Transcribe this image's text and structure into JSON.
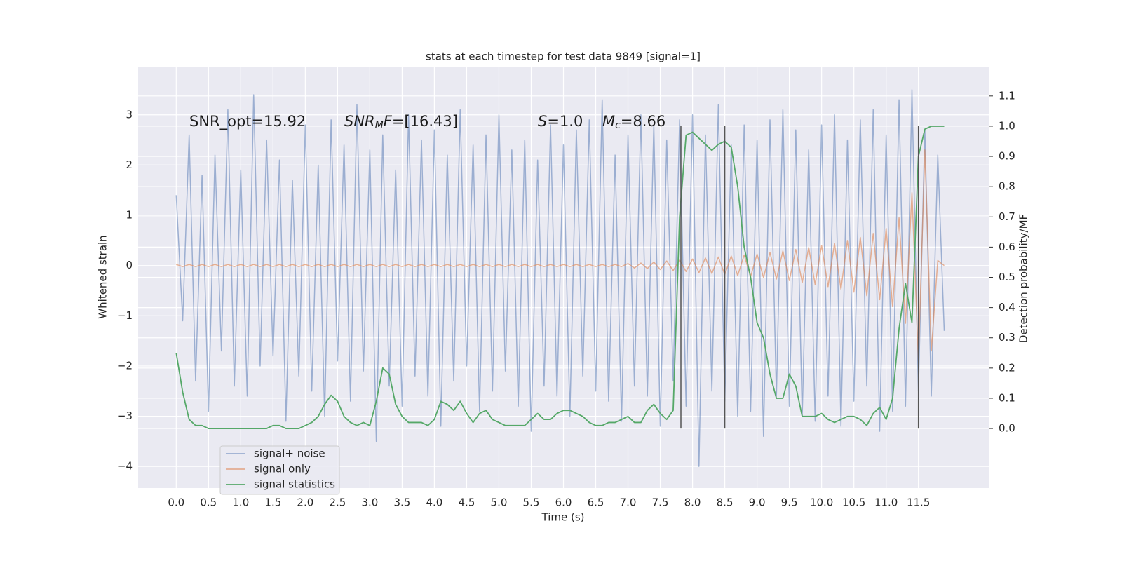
{
  "chart_data": {
    "type": "line",
    "title": "stats at each timestep for test data 9849 [signal=1]",
    "xlabel": "Time (s)",
    "ylabel": "Whitened strain",
    "y2label": "Detection probability/MF",
    "xlim": [
      -0.59,
      12.59
    ],
    "ylim": [
      -4.43,
      3.96
    ],
    "y2lim": [
      -0.197,
      1.197
    ],
    "xticks": [
      {
        "value": 0,
        "label": "0.0"
      },
      0.5,
      {
        "value": 1,
        "label": "1.0"
      },
      1.5,
      {
        "value": 2,
        "label": "2.0"
      },
      2.5,
      {
        "value": 3,
        "label": "3.0"
      },
      3.5,
      {
        "value": 4,
        "label": "4.0"
      },
      4.5,
      {
        "value": 5,
        "label": "5.0"
      },
      5.5,
      {
        "value": 6,
        "label": "6.0"
      },
      6.5,
      {
        "value": 7,
        "label": "7.0"
      },
      7.5,
      {
        "value": 8,
        "label": "8.0"
      },
      8.5,
      {
        "value": 9,
        "label": "9.0"
      },
      9.5,
      {
        "value": 10,
        "label": "10.0"
      },
      10.5,
      {
        "value": 11,
        "label": "11.0"
      },
      11.5
    ],
    "yticks": [
      {
        "value": -4,
        "label": "−4"
      },
      {
        "value": -3,
        "label": "−3"
      },
      {
        "value": -2,
        "label": "−2"
      },
      {
        "value": -1,
        "label": "−1"
      },
      0,
      1,
      2,
      3
    ],
    "y2ticks": [
      {
        "value": 0,
        "label": "0.0"
      },
      0.1,
      0.2,
      0.3,
      0.4,
      0.5,
      0.6,
      0.7,
      0.8,
      0.9,
      {
        "value": 1,
        "label": "1.0"
      },
      1.1
    ],
    "grid": true,
    "legend": "lower left",
    "background": "#eaeaf2",
    "annotations": [
      [
        {
          "text": "SNR_opt=15.92",
          "style": "normal"
        }
      ],
      [
        {
          "text": "SNR",
          "style": "italic"
        },
        {
          "text": "M",
          "style": "subscript"
        },
        {
          "text": "F",
          "style": "italic"
        },
        {
          "text": "=[16.43]",
          "style": "normal"
        }
      ],
      [
        {
          "text": "S",
          "style": "italic"
        },
        {
          "text": "=1.0",
          "style": "normal"
        }
      ],
      [
        {
          "text": "M",
          "style": "italic"
        },
        {
          "text": "c",
          "style": "subscript"
        },
        {
          "text": "=8.66",
          "style": "normal"
        }
      ]
    ],
    "vlines": {
      "x": [
        7.82,
        8.5,
        11.5
      ],
      "y2span": [
        0,
        1
      ],
      "color": "#555555"
    },
    "x": [
      0,
      0.1,
      0.2,
      0.3,
      0.4,
      0.5,
      0.6,
      0.7,
      0.8,
      0.9,
      1,
      1.1,
      1.2,
      1.3,
      1.4,
      1.5,
      1.6,
      1.7,
      1.8,
      1.9,
      2,
      2.1,
      2.2,
      2.3,
      2.4,
      2.5,
      2.6,
      2.7,
      2.8,
      2.9,
      3,
      3.1,
      3.2,
      3.3,
      3.4,
      3.5,
      3.6,
      3.7,
      3.8,
      3.9,
      4,
      4.1,
      4.2,
      4.3,
      4.4,
      4.5,
      4.6,
      4.7,
      4.8,
      4.9,
      5,
      5.1,
      5.2,
      5.3,
      5.4,
      5.5,
      5.6,
      5.7,
      5.8,
      5.9,
      6,
      6.1,
      6.2,
      6.3,
      6.4,
      6.5,
      6.6,
      6.7,
      6.8,
      6.9,
      7,
      7.1,
      7.2,
      7.3,
      7.4,
      7.5,
      7.6,
      7.7,
      7.8,
      7.9,
      8,
      8.1,
      8.2,
      8.3,
      8.4,
      8.5,
      8.6,
      8.7,
      8.8,
      8.9,
      9,
      9.1,
      9.2,
      9.3,
      9.4,
      9.5,
      9.6,
      9.7,
      9.8,
      9.9,
      10,
      10.1,
      10.2,
      10.3,
      10.4,
      10.5,
      10.6,
      10.7,
      10.8,
      10.9,
      11,
      11.1,
      11.2,
      11.3,
      11.4,
      11.5,
      11.6,
      11.7,
      11.8,
      11.9
    ],
    "series": [
      {
        "name": "signal+ noise",
        "color": "#4c72b0",
        "opacity": 0.5,
        "axis": "y",
        "values": [
          1.4,
          -1.1,
          2.6,
          -2.3,
          1.8,
          -2.9,
          2.2,
          -1.7,
          3.1,
          -2.4,
          1.9,
          -2.6,
          3.4,
          -2.0,
          2.5,
          -1.8,
          2.1,
          -3.1,
          1.7,
          -2.2,
          2.8,
          -2.5,
          2.0,
          -3.0,
          2.9,
          -1.9,
          2.4,
          -2.7,
          3.2,
          -2.1,
          2.3,
          -3.5,
          2.6,
          -2.4,
          1.9,
          -2.8,
          3.0,
          -2.2,
          2.5,
          -2.6,
          2.7,
          -3.2,
          2.2,
          -2.3,
          3.1,
          -2.0,
          2.4,
          -2.9,
          2.6,
          -2.5,
          3.0,
          -2.1,
          2.3,
          -2.8,
          2.5,
          -3.3,
          2.1,
          -2.4,
          2.8,
          -2.6,
          2.4,
          -3.0,
          2.7,
          -2.2,
          2.9,
          -2.5,
          3.3,
          -2.7,
          2.2,
          -3.1,
          2.6,
          -2.4,
          3.0,
          -2.6,
          2.8,
          -3.2,
          2.5,
          -2.3,
          2.9,
          -2.8,
          3.0,
          -4.0,
          2.6,
          -2.5,
          3.2,
          -2.7,
          2.4,
          -3.0,
          2.8,
          -2.9,
          2.5,
          -3.4,
          2.9,
          -2.6,
          3.1,
          -2.8,
          2.7,
          -3.0,
          2.3,
          -3.1,
          2.8,
          -2.6,
          3.0,
          -3.2,
          2.5,
          -2.7,
          2.9,
          -2.4,
          3.1,
          -3.3,
          2.6,
          -2.9,
          3.3,
          -2.8,
          3.5,
          -2.5,
          2.7,
          -2.6,
          2.2,
          -1.3
        ]
      },
      {
        "name": "signal only",
        "color": "#dd8452",
        "opacity": 0.6,
        "axis": "y",
        "values": [
          0.02,
          -0.02,
          0.02,
          -0.02,
          0.02,
          -0.02,
          0.02,
          -0.02,
          0.02,
          -0.02,
          0.02,
          -0.02,
          0.02,
          -0.02,
          0.02,
          -0.02,
          0.02,
          -0.02,
          0.02,
          -0.02,
          0.02,
          -0.02,
          0.02,
          -0.02,
          0.02,
          -0.02,
          0.02,
          -0.02,
          0.02,
          -0.02,
          0.02,
          -0.02,
          0.02,
          -0.02,
          0.02,
          -0.02,
          0.02,
          -0.02,
          0.02,
          -0.02,
          0.02,
          -0.02,
          0.02,
          -0.02,
          0.02,
          -0.02,
          0.02,
          -0.02,
          0.02,
          -0.02,
          0.02,
          -0.02,
          0.02,
          -0.02,
          0.02,
          -0.02,
          0.02,
          -0.02,
          0.02,
          -0.02,
          0.02,
          -0.02,
          0.02,
          -0.02,
          0.02,
          -0.02,
          0.02,
          -0.02,
          0.02,
          -0.02,
          0.04,
          -0.05,
          0.05,
          -0.06,
          0.07,
          -0.08,
          0.09,
          -0.1,
          0.11,
          -0.12,
          0.13,
          -0.14,
          0.15,
          -0.16,
          0.17,
          -0.18,
          0.19,
          -0.2,
          0.21,
          -0.22,
          0.23,
          -0.24,
          0.26,
          -0.27,
          0.29,
          -0.3,
          0.32,
          -0.34,
          0.36,
          -0.38,
          0.4,
          -0.42,
          0.44,
          -0.47,
          0.5,
          -0.53,
          0.56,
          -0.6,
          0.64,
          -0.68,
          0.74,
          -0.82,
          0.95,
          -1.15,
          1.45,
          -1.9,
          2.3,
          -1.7,
          0.1,
          0
        ]
      },
      {
        "name": "signal statistics",
        "color": "#55a868",
        "opacity": 1,
        "axis": "y2",
        "values": [
          0.25,
          0.12,
          0.03,
          0.01,
          0.01,
          0,
          0,
          0,
          0,
          0,
          0,
          0,
          0,
          0,
          0,
          0.01,
          0.01,
          0,
          0,
          0,
          0.01,
          0.02,
          0.04,
          0.08,
          0.11,
          0.09,
          0.04,
          0.02,
          0.01,
          0.02,
          0.01,
          0.09,
          0.2,
          0.18,
          0.08,
          0.04,
          0.02,
          0.02,
          0.02,
          0.01,
          0.03,
          0.09,
          0.08,
          0.06,
          0.09,
          0.05,
          0.02,
          0.05,
          0.06,
          0.03,
          0.02,
          0.01,
          0.01,
          0.01,
          0.01,
          0.03,
          0.05,
          0.03,
          0.03,
          0.05,
          0.06,
          0.06,
          0.05,
          0.04,
          0.02,
          0.01,
          0.01,
          0.02,
          0.02,
          0.03,
          0.04,
          0.02,
          0.02,
          0.06,
          0.08,
          0.05,
          0.03,
          0.06,
          0.7,
          0.97,
          0.98,
          0.96,
          0.94,
          0.92,
          0.94,
          0.95,
          0.93,
          0.8,
          0.6,
          0.5,
          0.35,
          0.3,
          0.18,
          0.1,
          0.1,
          0.18,
          0.14,
          0.04,
          0.04,
          0.04,
          0.05,
          0.03,
          0.02,
          0.03,
          0.04,
          0.04,
          0.03,
          0.01,
          0.05,
          0.07,
          0.03,
          0.1,
          0.33,
          0.48,
          0.35,
          0.9,
          0.99,
          1,
          1,
          1
        ]
      }
    ]
  }
}
